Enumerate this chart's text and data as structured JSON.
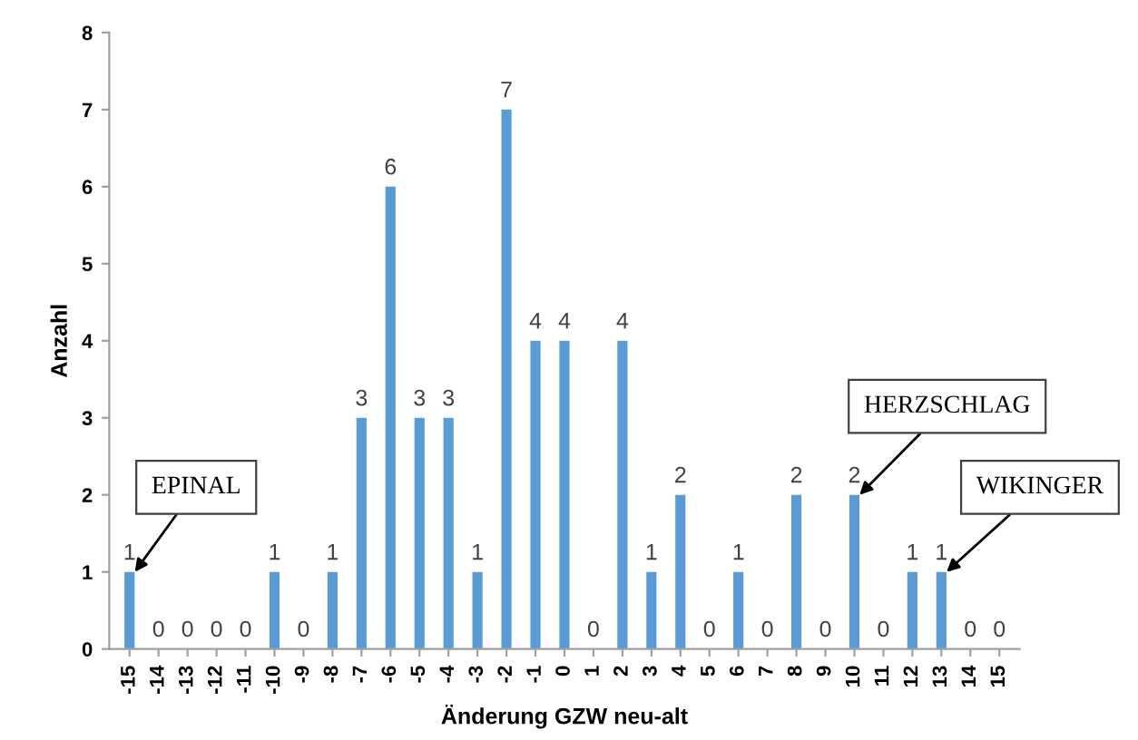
{
  "chart_data": {
    "type": "bar",
    "xlabel": "Änderung GZW neu-alt",
    "ylabel": "Anzahl",
    "categories": [
      "-15",
      "-14",
      "-13",
      "-12",
      "-11",
      "-10",
      "-9",
      "-8",
      "-7",
      "-6",
      "-5",
      "-4",
      "-3",
      "-2",
      "-1",
      "0",
      "1",
      "2",
      "3",
      "4",
      "5",
      "6",
      "7",
      "8",
      "9",
      "10",
      "11",
      "12",
      "13",
      "14",
      "15"
    ],
    "values": [
      1,
      0,
      0,
      0,
      0,
      1,
      0,
      1,
      3,
      6,
      3,
      3,
      1,
      7,
      4,
      4,
      0,
      4,
      1,
      2,
      0,
      1,
      0,
      2,
      0,
      2,
      0,
      1,
      1,
      0,
      0
    ],
    "color": "#5b9bd5",
    "ylim": [
      0,
      8
    ],
    "yticks": [
      0,
      1,
      2,
      3,
      4,
      5,
      6,
      7,
      8
    ],
    "grid": false,
    "data_labels": true,
    "annotations": [
      {
        "text": "EPINAL",
        "x": "-15",
        "y": 1
      },
      {
        "text": "HERZSCHLAG",
        "x": "10",
        "y": 2
      },
      {
        "text": "WIKINGER",
        "x": "13",
        "y": 1
      }
    ]
  }
}
